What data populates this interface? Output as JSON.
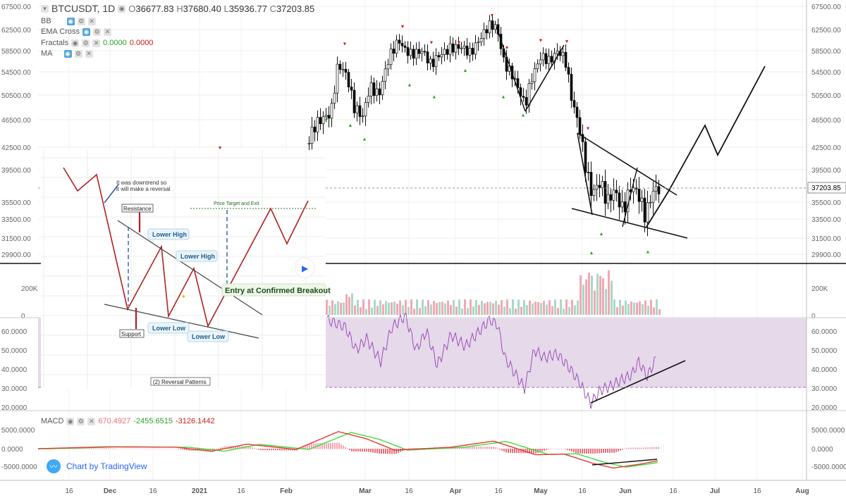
{
  "header": {
    "symbol": "BTCUSDT, 1D",
    "open_label": "O",
    "open": "36677.83",
    "high_label": "H",
    "high": "37680.40",
    "low_label": "L",
    "low": "35936.77",
    "close_label": "C",
    "close": "37203.85"
  },
  "indicators": {
    "bb": "BB",
    "ema": "EMA Cross",
    "fractals": "Fractals",
    "fractals_v1": "0.0000",
    "fractals_v2": "0.0000",
    "ma": "MA",
    "macd": "MACD",
    "macd_v1": "670.4927",
    "macd_v2": "-2455.6515",
    "macd_v3": "-3126.1442"
  },
  "badge": {
    "text": "Chart by TradingView"
  },
  "colors": {
    "up": "#ffffff",
    "down": "#000000",
    "rsi": "#9c4fb8",
    "rsi_bg": "#e6d9ea",
    "macd": "#e53935",
    "signal": "#3ddc3d",
    "vol_up": "#a8d8c8",
    "vol_down": "#f4a7b3",
    "pattern": "#b22222",
    "arrow": "#2e5fa8"
  },
  "chart_data": [
    {
      "type": "candlestick",
      "title": "BTCUSDT, 1D",
      "current_price": "37203.85",
      "price_ticks": [
        "67500.00",
        "62500.00",
        "58500.00",
        "54500.00",
        "50500.00",
        "46500.00",
        "42500.00",
        "39500.00",
        "35500.00",
        "33500.00",
        "31500.00",
        "29900.00"
      ],
      "time_ticks": [
        "16",
        "Dec",
        "16",
        "2021",
        "16",
        "Feb",
        "Mar",
        "16",
        "Apr",
        "16",
        "May",
        "16",
        "Jun",
        "16",
        "Jul",
        "16",
        "Aug"
      ],
      "ylim": [
        28000,
        68000
      ],
      "pattern": "falling wedge",
      "wedge_upper": [
        [
          "May 14",
          44200
        ],
        [
          "Jun 14",
          36800
        ]
      ],
      "wedge_lower": [
        [
          "May 10",
          35600
        ],
        [
          "Jun 16",
          31400
        ]
      ],
      "projection": [
        [
          "Jun 9",
          33600
        ],
        [
          "Jun 18",
          37500
        ],
        [
          "Jun 27",
          45500
        ],
        [
          "Jul 2",
          41500
        ],
        [
          "Jul 16",
          55000
        ]
      ],
      "left_triangle": [
        [
          "Apr 27",
          48500
        ],
        [
          "May 9",
          58900
        ]
      ],
      "closes_apr_jun": [
        52000,
        50500,
        48500,
        49500,
        53500,
        56500,
        57000,
        58500,
        56000,
        49500,
        46500,
        43000,
        39000,
        36000,
        37500,
        38500,
        34500,
        35500,
        36500,
        33500,
        35000,
        37500,
        36500,
        34000,
        33000,
        36500,
        37203
      ]
    },
    {
      "type": "bar",
      "name": "Volume",
      "ticks": [
        "200K",
        "0"
      ]
    },
    {
      "type": "line",
      "name": "RSI",
      "ticks": [
        "60.0000",
        "50.0000",
        "40.0000",
        "30.0000",
        "20.0000"
      ],
      "band": [
        30,
        70
      ],
      "values_apr_jun": [
        63,
        58,
        52,
        44,
        38,
        35,
        31,
        40,
        45,
        48,
        44,
        37,
        30,
        27,
        23,
        30,
        29,
        33,
        29,
        33,
        35,
        31,
        36,
        38,
        36,
        44,
        45
      ]
    },
    {
      "type": "line",
      "name": "MACD",
      "ticks": [
        "5000.0000",
        "0.0000",
        "-5000.0000"
      ],
      "macd_values": [
        670.4927
      ],
      "signal": -2455.6515,
      "histogram": -3126.1442
    },
    {
      "type": "diagram",
      "name": "(2) Reversal Patterns",
      "labels": {
        "note1": "It was downtrend so",
        "note2": "it will make a reversal",
        "resistance": "Resistance",
        "support": "Support",
        "lower_high_1": "Lower High",
        "lower_high_2": "Lower High",
        "lower_low_1": "Lower Low",
        "lower_low_2": "Lower Low",
        "entry": "Entry at Confirmed Breakout",
        "target": "Price Target and Exit",
        "caption": "(2) Reversal Patterns"
      }
    }
  ]
}
